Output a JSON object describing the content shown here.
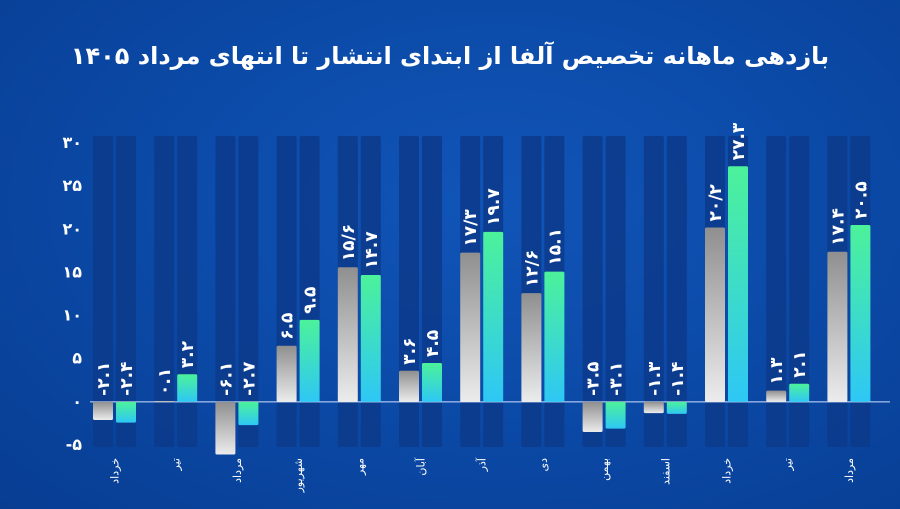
{
  "title": "بازدهی ماهانه تخصیص آلفا از ابتدای انتشار تا انتهای مرداد ۱۴۰۵",
  "colors": {
    "background": "#0a47a3",
    "track": "#0c3b8c",
    "grey_top": "#9a9a9a",
    "grey_bottom": "#e8e8e8",
    "green_top": "#4cf29a",
    "green_bottom": "#2ec7f5",
    "text": "#ffffff"
  },
  "chart_data": {
    "type": "bar",
    "title": "بازدهی ماهانه تخصیص آلفا از ابتدای انتشار تا انتهای مرداد ۱۴۰۵",
    "ylim": [
      -5,
      30
    ],
    "yticks": [
      -5,
      0,
      5,
      10,
      15,
      20,
      25,
      30
    ],
    "ytick_labels": [
      "-۵",
      "۰",
      "۵",
      "۱۰",
      "۱۵",
      "۲۰",
      "۲۵",
      "۳۰"
    ],
    "categories": [
      "خرداد",
      "تیر",
      "مرداد",
      "شهریور",
      "مهر",
      "آبان",
      "آذر",
      "دی",
      "بهمن",
      "اسفند",
      "خرداد",
      "تیر",
      "مرداد"
    ],
    "series": [
      {
        "style": "grey",
        "values": [
          -2.1,
          0.1,
          -6.1,
          6.5,
          15.6,
          3.6,
          17.3,
          12.6,
          -3.5,
          -1.3,
          20.2,
          1.3,
          17.4
        ],
        "labels": [
          "-۲.۱",
          "۰.۱",
          "-۶.۱",
          "۶.۵",
          "۱۵/۶",
          "۳.۶",
          "۱۷/۳",
          "۱۲/۶",
          "-۳.۵",
          "-۱.۳",
          "۲۰/۲",
          "۱.۳",
          "۱۷.۴"
        ]
      },
      {
        "style": "green",
        "values": [
          -2.4,
          3.2,
          -2.7,
          9.5,
          14.7,
          4.5,
          19.7,
          15.1,
          -3.1,
          -1.4,
          27.3,
          2.1,
          20.5
        ],
        "labels": [
          "-۲.۴",
          "۳.۲",
          "-۲.۷",
          "۹.۵",
          "۱۴.۷",
          "۴.۵",
          "۱۹.۷",
          "۱۵.۱",
          "-۳.۱",
          "-۱.۴",
          "۲۷.۳",
          "۲.۱",
          "۲۰.۵"
        ]
      }
    ],
    "grid": false,
    "legend": "none"
  }
}
